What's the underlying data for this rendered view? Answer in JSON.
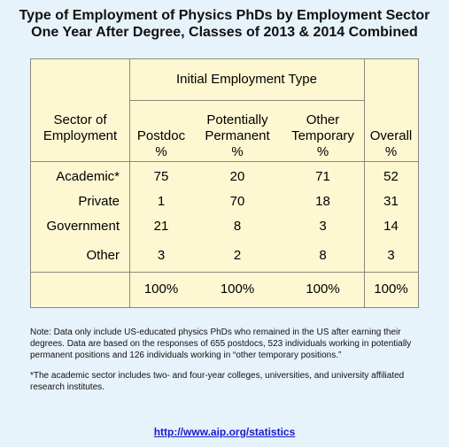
{
  "title": {
    "line1": "Type of Employment of Physics PhDs by Employment Sector",
    "line2": "One Year After Degree, Classes of 2013 & 2014 Combined"
  },
  "chart_data": {
    "type": "table",
    "group_header": "Initial Employment Type",
    "row_header": [
      "Sector of",
      "Employment"
    ],
    "columns": [
      {
        "name": [
          "Postdoc",
          "%"
        ]
      },
      {
        "name": [
          "Potentially",
          "Permanent",
          "%"
        ]
      },
      {
        "name": [
          "Other",
          "Temporary",
          "%"
        ]
      },
      {
        "name": [
          "Overall",
          "%"
        ]
      }
    ],
    "rows": [
      {
        "label": "Academic*",
        "values": [
          "75",
          "20",
          "71",
          "52"
        ]
      },
      {
        "label": "Private",
        "values": [
          "1",
          "70",
          "18",
          "31"
        ]
      },
      {
        "label": "Government",
        "values": [
          "21",
          "8",
          "3",
          "14"
        ]
      },
      {
        "label": "Other",
        "values": [
          "3",
          "2",
          "8",
          "3"
        ]
      }
    ],
    "totals": [
      "100%",
      "100%",
      "100%",
      "100%"
    ]
  },
  "notes": {
    "note1": "Note: Data only include US-educated physics PhDs who remained in the US after earning their degrees. Data are based on the responses of 655 postdocs, 523 individuals working in potentially permanent positions and 126 individuals working in “other temporary positions.”",
    "note2": "*The academic sector includes two- and four-year colleges, universities, and university affiliated research institutes."
  },
  "link": "http://www.aip.org/statistics",
  "colors": {
    "background": "#e6f3fa",
    "table": "#fdf8d2",
    "link": "#1a1acc"
  }
}
